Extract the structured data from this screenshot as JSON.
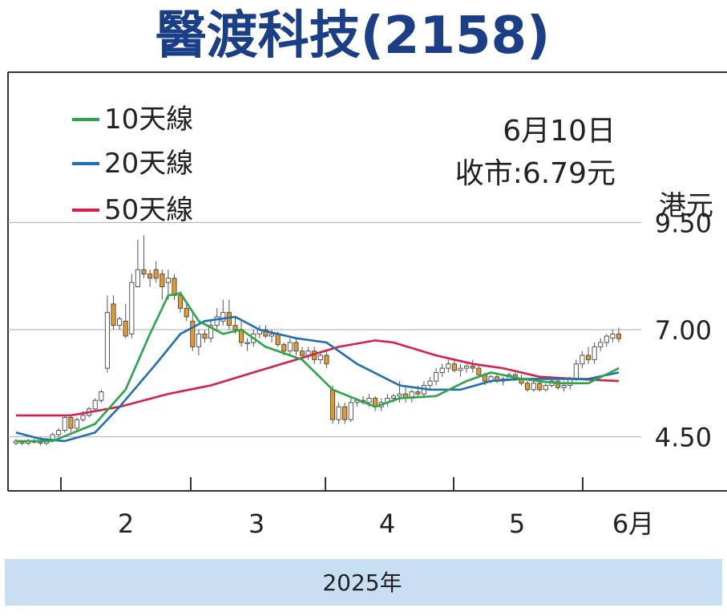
{
  "header": {
    "title": "醫渡科技(2158)"
  },
  "info": {
    "date": "6月10日",
    "close_label": "收市:6.79元",
    "unit": "港元"
  },
  "legend": [
    {
      "label": "10天線",
      "color": "#2aa64a"
    },
    {
      "label": "20天線",
      "color": "#1f6fb8"
    },
    {
      "label": "50天線",
      "color": "#d61f49"
    }
  ],
  "footer": {
    "label": "2025年"
  },
  "colors": {
    "title": "#1b3f86",
    "candle_up": "#ffffff",
    "candle_down": "#e59a2e",
    "footer_bg": "#c8def3"
  },
  "chart_data": {
    "type": "candlestick",
    "ylim": [
      3.5,
      10.5
    ],
    "y_ticks": [
      "9.50",
      "7.00",
      "4.50"
    ],
    "x_tick_labels": [
      "2",
      "3",
      "4",
      "5",
      "6月"
    ],
    "grid": "horizontal",
    "legend_position": "top-left",
    "series": [
      {
        "name": "10天線",
        "points": [
          [
            1,
            4.4
          ],
          [
            7,
            4.4
          ],
          [
            14,
            4.8
          ],
          [
            19,
            5.6
          ],
          [
            23,
            6.9
          ],
          [
            26,
            7.8
          ],
          [
            28,
            7.85
          ],
          [
            31,
            7.2
          ],
          [
            35,
            6.9
          ],
          [
            38,
            7.0
          ],
          [
            42,
            6.6
          ],
          [
            48,
            6.3
          ],
          [
            53,
            5.6
          ],
          [
            60,
            5.2
          ],
          [
            64,
            5.4
          ],
          [
            70,
            5.45
          ],
          [
            75,
            5.8
          ],
          [
            79,
            6.0
          ],
          [
            84,
            5.85
          ],
          [
            90,
            5.75
          ],
          [
            95,
            5.75
          ],
          [
            100,
            6.1
          ]
        ]
      },
      {
        "name": "20天線",
        "points": [
          [
            1,
            4.6
          ],
          [
            5,
            4.45
          ],
          [
            9,
            4.4
          ],
          [
            14,
            4.6
          ],
          [
            18,
            5.2
          ],
          [
            24,
            6.2
          ],
          [
            28,
            6.9
          ],
          [
            32,
            7.2
          ],
          [
            37,
            7.3
          ],
          [
            41,
            7.0
          ],
          [
            47,
            6.8
          ],
          [
            52,
            6.7
          ],
          [
            57,
            6.2
          ],
          [
            64,
            5.7
          ],
          [
            69,
            5.6
          ],
          [
            74,
            5.6
          ],
          [
            79,
            5.8
          ],
          [
            84,
            5.85
          ],
          [
            88,
            5.85
          ],
          [
            95,
            5.85
          ],
          [
            100,
            6.0
          ]
        ]
      },
      {
        "name": "50天線",
        "points": [
          [
            1,
            5.0
          ],
          [
            10,
            5.0
          ],
          [
            18,
            5.2
          ],
          [
            26,
            5.5
          ],
          [
            33,
            5.7
          ],
          [
            40,
            6.0
          ],
          [
            47,
            6.3
          ],
          [
            54,
            6.6
          ],
          [
            60,
            6.75
          ],
          [
            63,
            6.7
          ],
          [
            70,
            6.4
          ],
          [
            76,
            6.2
          ],
          [
            81,
            6.1
          ],
          [
            87,
            5.9
          ],
          [
            93,
            5.85
          ],
          [
            100,
            5.8
          ]
        ]
      }
    ],
    "candles": [
      [
        1,
        4.35,
        4.45,
        4.3,
        4.4
      ],
      [
        2,
        4.4,
        4.42,
        4.3,
        4.35
      ],
      [
        3,
        4.35,
        4.45,
        4.3,
        4.4
      ],
      [
        4,
        4.4,
        4.45,
        4.35,
        4.38
      ],
      [
        5,
        4.4,
        4.5,
        4.3,
        4.35
      ],
      [
        6,
        4.35,
        4.45,
        4.3,
        4.42
      ],
      [
        7,
        4.42,
        4.6,
        4.4,
        4.55
      ],
      [
        8,
        4.55,
        4.7,
        4.5,
        4.65
      ],
      [
        9,
        4.65,
        5.0,
        4.6,
        4.95
      ],
      [
        10,
        4.95,
        5.0,
        4.6,
        4.7
      ],
      [
        11,
        4.7,
        4.95,
        4.65,
        4.9
      ],
      [
        12,
        4.9,
        5.1,
        4.85,
        5.0
      ],
      [
        13,
        5.0,
        5.2,
        4.95,
        5.15
      ],
      [
        14,
        5.15,
        5.4,
        5.1,
        5.35
      ],
      [
        15,
        5.35,
        5.6,
        5.3,
        5.55
      ],
      [
        16,
        6.1,
        7.8,
        6.0,
        7.4
      ],
      [
        17,
        7.6,
        7.8,
        7.0,
        7.1
      ],
      [
        18,
        7.1,
        7.3,
        7.0,
        7.25
      ],
      [
        19,
        7.2,
        7.6,
        6.8,
        6.85
      ],
      [
        20,
        6.9,
        8.3,
        6.8,
        8.1
      ],
      [
        21,
        8.0,
        9.1,
        8.0,
        8.4
      ],
      [
        22,
        8.4,
        9.2,
        8.2,
        8.3
      ],
      [
        23,
        8.3,
        8.4,
        8.0,
        8.2
      ],
      [
        24,
        8.4,
        8.6,
        8.1,
        8.2
      ],
      [
        25,
        8.3,
        8.4,
        7.7,
        8.0
      ],
      [
        26,
        8.1,
        8.4,
        7.7,
        8.2
      ],
      [
        27,
        8.2,
        8.3,
        7.7,
        7.8
      ],
      [
        28,
        7.8,
        7.9,
        7.4,
        7.5
      ],
      [
        29,
        7.5,
        7.6,
        7.2,
        7.3
      ],
      [
        30,
        7.2,
        7.4,
        6.5,
        6.6
      ],
      [
        31,
        6.6,
        7.0,
        6.4,
        6.9
      ],
      [
        32,
        6.9,
        7.0,
        6.7,
        6.8
      ],
      [
        33,
        6.8,
        7.2,
        6.7,
        7.1
      ],
      [
        34,
        7.1,
        7.5,
        7.0,
        7.3
      ],
      [
        35,
        7.2,
        7.7,
        7.1,
        7.4
      ],
      [
        36,
        7.4,
        7.7,
        7.0,
        7.1
      ],
      [
        37,
        7.1,
        7.3,
        6.9,
        7.0
      ],
      [
        38,
        7.0,
        7.2,
        6.6,
        6.7
      ],
      [
        39,
        6.7,
        6.8,
        6.5,
        6.7
      ],
      [
        40,
        6.7,
        7.0,
        6.6,
        6.9
      ],
      [
        41,
        6.9,
        7.1,
        6.8,
        7.0
      ],
      [
        42,
        7.0,
        7.1,
        6.8,
        6.85
      ],
      [
        43,
        6.85,
        7.0,
        6.7,
        6.9
      ],
      [
        44,
        6.9,
        6.95,
        6.6,
        6.65
      ],
      [
        45,
        6.65,
        6.7,
        6.4,
        6.5
      ],
      [
        46,
        6.5,
        6.8,
        6.4,
        6.7
      ],
      [
        47,
        6.7,
        6.8,
        6.4,
        6.5
      ],
      [
        48,
        6.5,
        6.6,
        6.3,
        6.4
      ],
      [
        49,
        6.4,
        6.6,
        6.3,
        6.5
      ],
      [
        50,
        6.5,
        6.6,
        6.2,
        6.3
      ],
      [
        51,
        6.3,
        6.5,
        6.2,
        6.4
      ],
      [
        52,
        6.4,
        6.5,
        6.1,
        6.2
      ],
      [
        53,
        5.6,
        5.7,
        4.8,
        4.9
      ],
      [
        54,
        4.9,
        5.3,
        4.8,
        5.2
      ],
      [
        55,
        5.2,
        5.3,
        4.8,
        4.9
      ],
      [
        56,
        4.9,
        5.4,
        4.85,
        5.3
      ],
      [
        57,
        5.3,
        5.4,
        5.2,
        5.35
      ],
      [
        58,
        5.35,
        5.45,
        5.25,
        5.3
      ],
      [
        59,
        5.3,
        5.5,
        5.2,
        5.4
      ],
      [
        60,
        5.4,
        5.45,
        5.1,
        5.2
      ],
      [
        61,
        5.2,
        5.4,
        5.1,
        5.3
      ],
      [
        62,
        5.3,
        5.5,
        5.2,
        5.4
      ],
      [
        63,
        5.4,
        5.5,
        5.3,
        5.45
      ],
      [
        64,
        5.45,
        5.8,
        5.3,
        5.5
      ],
      [
        65,
        5.5,
        5.7,
        5.3,
        5.4
      ],
      [
        66,
        5.4,
        5.6,
        5.3,
        5.55
      ],
      [
        67,
        5.55,
        5.7,
        5.4,
        5.5
      ],
      [
        68,
        5.5,
        5.8,
        5.4,
        5.7
      ],
      [
        69,
        5.7,
        5.9,
        5.6,
        5.8
      ],
      [
        70,
        5.8,
        6.1,
        5.7,
        6.0
      ],
      [
        71,
        6.0,
        6.2,
        5.9,
        6.1
      ],
      [
        72,
        6.1,
        6.3,
        6.0,
        6.2
      ],
      [
        73,
        6.2,
        6.3,
        6.0,
        6.05
      ],
      [
        74,
        6.05,
        6.2,
        5.9,
        6.1
      ],
      [
        75,
        6.1,
        6.2,
        6.0,
        6.15
      ],
      [
        76,
        6.15,
        6.3,
        6.0,
        6.1
      ],
      [
        77,
        6.1,
        6.2,
        5.9,
        5.95
      ],
      [
        78,
        5.95,
        6.0,
        5.7,
        5.8
      ],
      [
        79,
        5.8,
        5.95,
        5.75,
        5.9
      ],
      [
        80,
        5.9,
        6.0,
        5.75,
        5.8
      ],
      [
        81,
        5.8,
        5.9,
        5.7,
        5.85
      ],
      [
        82,
        5.85,
        6.0,
        5.8,
        5.95
      ],
      [
        83,
        5.95,
        6.0,
        5.8,
        5.85
      ],
      [
        84,
        5.85,
        5.95,
        5.7,
        5.75
      ],
      [
        85,
        5.75,
        5.8,
        5.55,
        5.6
      ],
      [
        86,
        5.6,
        5.8,
        5.55,
        5.75
      ],
      [
        87,
        5.75,
        5.8,
        5.55,
        5.6
      ],
      [
        88,
        5.6,
        5.75,
        5.55,
        5.7
      ],
      [
        89,
        5.7,
        5.9,
        5.65,
        5.8
      ],
      [
        90,
        5.8,
        5.85,
        5.6,
        5.65
      ],
      [
        91,
        5.65,
        5.8,
        5.55,
        5.7
      ],
      [
        92,
        5.7,
        5.9,
        5.6,
        5.85
      ],
      [
        93,
        5.85,
        6.3,
        5.8,
        6.2
      ],
      [
        94,
        6.2,
        6.5,
        6.1,
        6.4
      ],
      [
        95,
        6.4,
        6.6,
        6.2,
        6.3
      ],
      [
        96,
        6.3,
        6.7,
        6.2,
        6.6
      ],
      [
        97,
        6.6,
        6.8,
        6.5,
        6.7
      ],
      [
        98,
        6.7,
        6.9,
        6.6,
        6.85
      ],
      [
        99,
        6.8,
        7.0,
        6.7,
        6.9
      ],
      [
        100,
        6.9,
        7.05,
        6.7,
        6.79
      ]
    ]
  }
}
